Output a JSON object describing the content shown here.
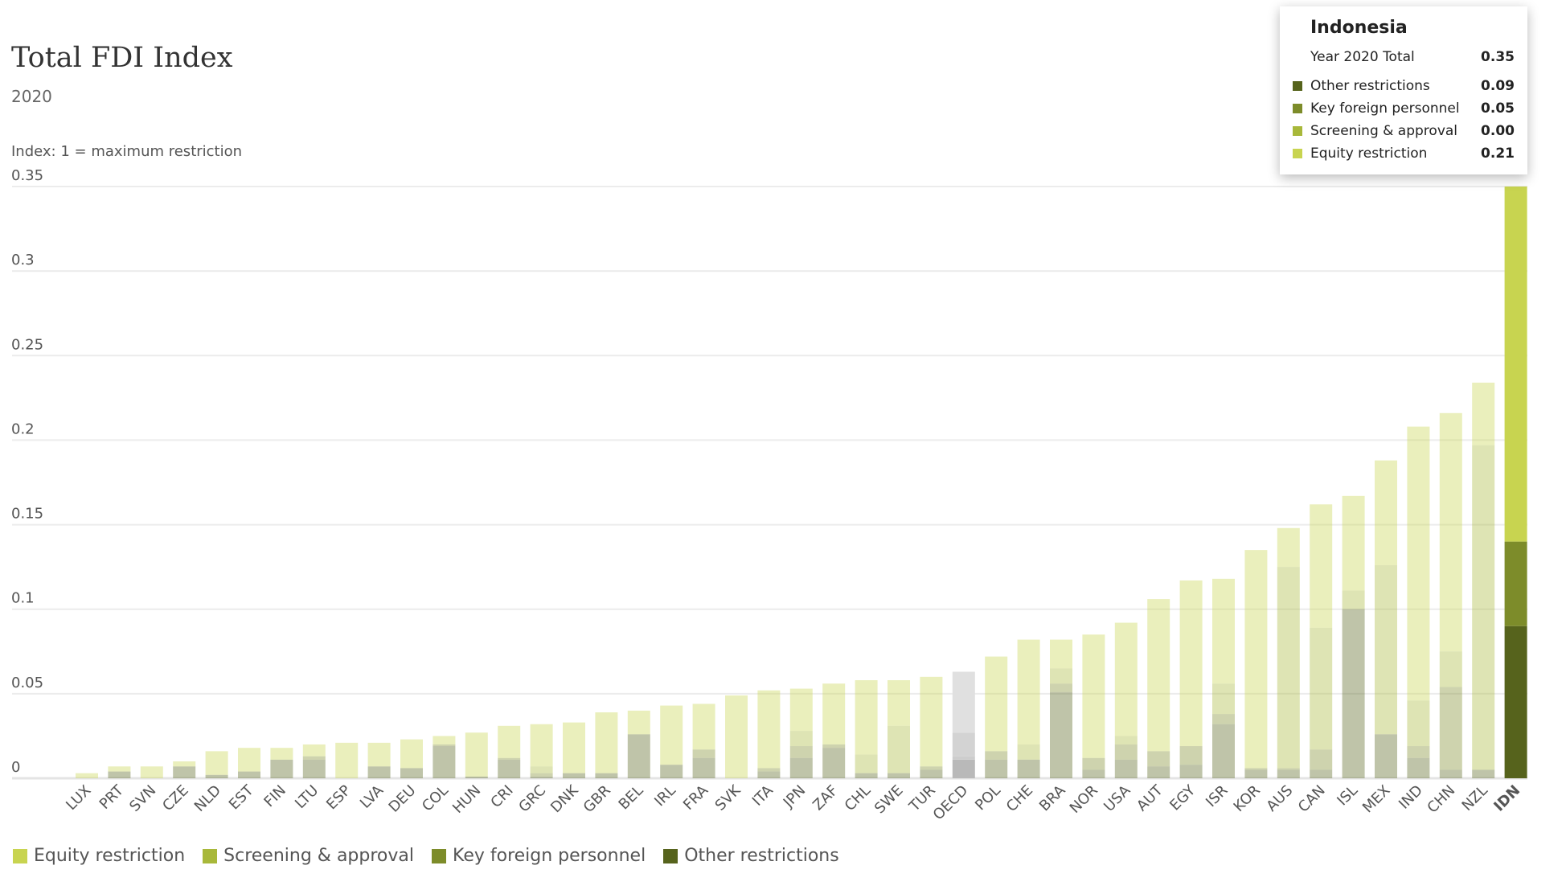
{
  "chart_data": {
    "type": "bar",
    "stacked": true,
    "title": "Total FDI Index",
    "subtitle": "2020",
    "ylabel": "Index: 1 = maximum restriction",
    "ylim": [
      0,
      0.35
    ],
    "yticks": [
      "0",
      "0.05",
      "0.1",
      "0.15",
      "0.2",
      "0.25",
      "0.3",
      "0.35"
    ],
    "grid": true,
    "legend_position": "bottom-left",
    "highlighted": "IDN",
    "categories": [
      "LUX",
      "PRT",
      "SVN",
      "CZE",
      "NLD",
      "EST",
      "FIN",
      "LTU",
      "ESP",
      "LVA",
      "DEU",
      "COL",
      "HUN",
      "CRI",
      "GRC",
      "DNK",
      "GBR",
      "BEL",
      "IRL",
      "FRA",
      "SVK",
      "ITA",
      "JPN",
      "ZAF",
      "CHL",
      "SWE",
      "TUR",
      "OECD",
      "POL",
      "CHE",
      "BRA",
      "NOR",
      "USA",
      "AUT",
      "EGY",
      "ISR",
      "KOR",
      "AUS",
      "CAN",
      "ISL",
      "MEX",
      "IND",
      "CHN",
      "NZL",
      "IDN"
    ],
    "series": [
      {
        "name": "Other restrictions",
        "color": "#56631c",
        "values": [
          0,
          0.004,
          0,
          0.007,
          0.002,
          0.004,
          0.011,
          0.011,
          0,
          0.007,
          0.006,
          0.019,
          0.001,
          0.011,
          0.001,
          0.003,
          0.003,
          0.026,
          0.008,
          0.012,
          0,
          0.004,
          0.012,
          0.018,
          0.003,
          0.003,
          0.005,
          0.011,
          0.011,
          0.011,
          0.051,
          0.005,
          0.011,
          0.007,
          0.008,
          0.032,
          0.005,
          0.005,
          0.005,
          0.1,
          0.026,
          0.012,
          0.005,
          0.005,
          0.09
        ]
      },
      {
        "name": "Key foreign personnel",
        "color": "#7d8c2a",
        "values": [
          0,
          0,
          0,
          0,
          0,
          0,
          0,
          0.002,
          0,
          0,
          0,
          0.001,
          0,
          0.001,
          0.002,
          0,
          0,
          0,
          0,
          0.005,
          0,
          0.002,
          0.007,
          0.002,
          0,
          0,
          0.002,
          0.002,
          0.005,
          0,
          0.005,
          0.007,
          0.009,
          0.009,
          0.011,
          0.006,
          0.001,
          0.001,
          0.012,
          0,
          0,
          0.007,
          0.049,
          0,
          0.05
        ]
      },
      {
        "name": "Screening & approval",
        "color": "#a8b83a",
        "values": [
          0,
          0,
          0,
          0,
          0,
          0,
          0,
          0,
          0,
          0,
          0,
          0,
          0,
          0,
          0.004,
          0,
          0,
          0,
          0,
          0,
          0,
          0,
          0.009,
          0,
          0.011,
          0.028,
          0,
          0.014,
          0,
          0.009,
          0.009,
          0,
          0.005,
          0,
          0,
          0.018,
          0,
          0.119,
          0.072,
          0.011,
          0.1,
          0.027,
          0.021,
          0.192,
          0.0
        ]
      },
      {
        "name": "Equity restriction",
        "color": "#c8d450",
        "values": [
          0.003,
          0.003,
          0.007,
          0.003,
          0.014,
          0.014,
          0.007,
          0.007,
          0.021,
          0.014,
          0.017,
          0.005,
          0.026,
          0.019,
          0.025,
          0.03,
          0.036,
          0.014,
          0.035,
          0.027,
          0.049,
          0.046,
          0.025,
          0.036,
          0.044,
          0.027,
          0.053,
          0.036,
          0.056,
          0.062,
          0.017,
          0.073,
          0.067,
          0.09,
          0.098,
          0.062,
          0.129,
          0.023,
          0.073,
          0.056,
          0.062,
          0.162,
          0.141,
          0.037,
          0.21
        ]
      }
    ]
  },
  "tooltip": {
    "country": "Indonesia",
    "total_label": "Year 2020 Total",
    "total_value": "0.35",
    "rows": [
      {
        "label": "Other restrictions",
        "value": "0.09",
        "color": "#56631c"
      },
      {
        "label": "Key foreign personnel",
        "value": "0.05",
        "color": "#7d8c2a"
      },
      {
        "label": "Screening & approval",
        "value": "0.00",
        "color": "#a8b83a"
      },
      {
        "label": "Equity restriction",
        "value": "0.21",
        "color": "#c8d450"
      }
    ]
  },
  "legend": [
    {
      "label": "Equity restriction",
      "color": "#c8d450"
    },
    {
      "label": "Screening & approval",
      "color": "#a8b83a"
    },
    {
      "label": "Key foreign personnel",
      "color": "#7d8c2a"
    },
    {
      "label": "Other restrictions",
      "color": "#56631c"
    }
  ]
}
